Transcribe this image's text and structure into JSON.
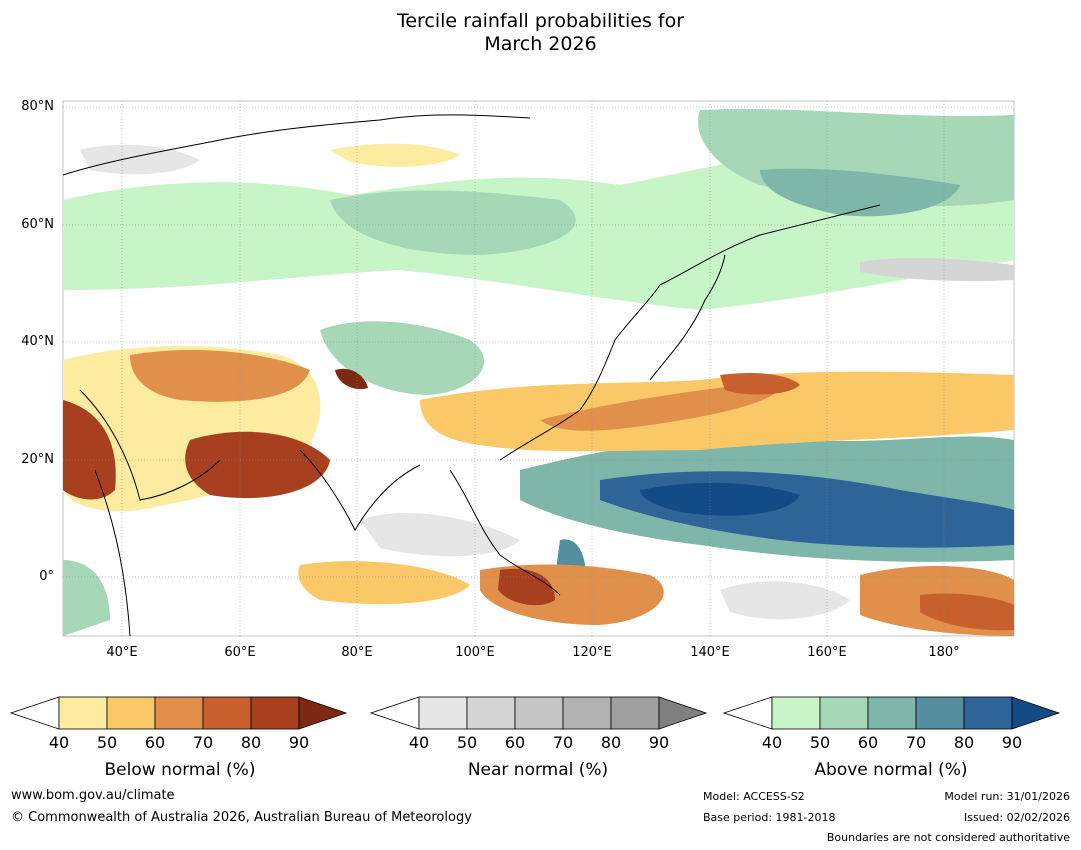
{
  "title": {
    "line1": "Tercile rainfall probabilities for",
    "line2": "March 2026"
  },
  "map": {
    "lon_range": [
      30,
      192
    ],
    "lat_range": [
      -10,
      81
    ],
    "lat_labels": [
      "80°N",
      "60°N",
      "40°N",
      "20°N",
      "0°"
    ],
    "lon_labels": [
      "40°E",
      "60°E",
      "80°E",
      "100°E",
      "120°E",
      "140°E",
      "160°E",
      "180°"
    ]
  },
  "colorbars": {
    "below": {
      "label": "Below normal (%)",
      "ticks": [
        "40",
        "50",
        "60",
        "70",
        "80",
        "90"
      ],
      "colors": [
        "#fdeba0",
        "#fbc868",
        "#e0904a",
        "#c8602e",
        "#a84020",
        "#7e2a12"
      ]
    },
    "near": {
      "label": "Near normal (%)",
      "ticks": [
        "40",
        "50",
        "60",
        "70",
        "80",
        "90"
      ],
      "colors": [
        "#e6e6e6",
        "#d5d5d5",
        "#c5c5c5",
        "#b2b2b2",
        "#9f9f9f",
        "#808080"
      ]
    },
    "above": {
      "label": "Above normal (%)",
      "ticks": [
        "40",
        "50",
        "60",
        "70",
        "80",
        "90"
      ],
      "colors": [
        "#c8f5c8",
        "#a6d7b6",
        "#7fb6aa",
        "#558e9e",
        "#2f6499",
        "#134b86"
      ]
    }
  },
  "footer": {
    "website": "www.bom.gov.au/climate",
    "copyright": "© Commonwealth of Australia 2026, Australian Bureau of Meteorology",
    "model": "Model: ACCESS-S2",
    "base_period": "Base period: 1981-2018",
    "model_run": "Model run: 31/01/2026",
    "issued": "Issued: 02/02/2026",
    "boundaries": "Boundaries are not considered authoritative"
  }
}
